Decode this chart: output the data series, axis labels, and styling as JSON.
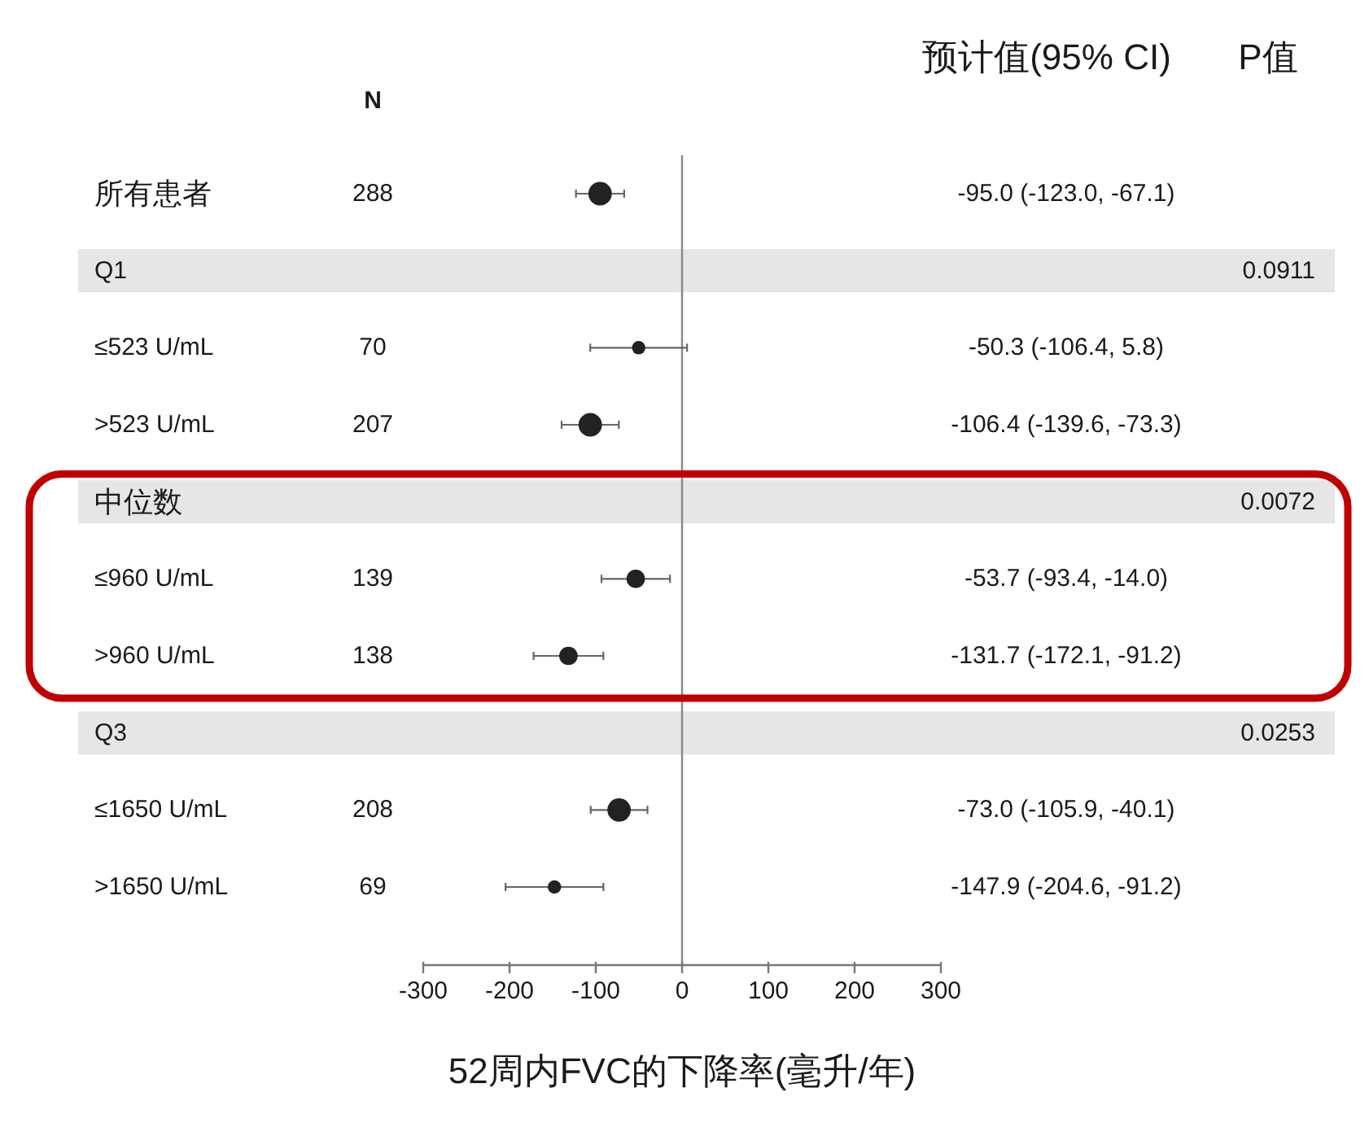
{
  "chart_data": {
    "type": "scatter",
    "orientation": "horizontal",
    "xlabel": "52周内FVC的下降率(毫升/年)",
    "categories": [
      "所有患者",
      "Q1",
      "≤523 U/mL",
      ">523 U/mL",
      "中位数",
      "≤960 U/mL",
      ">960 U/mL",
      "Q3",
      "≤1650 U/mL",
      ">1650 U/mL"
    ],
    "values": [
      -95.0,
      null,
      -50.3,
      -106.4,
      null,
      -53.7,
      -131.7,
      null,
      -73.0,
      -147.9
    ],
    "errors": [
      [
        -123.0,
        -67.1
      ],
      null,
      [
        -106.4,
        5.8
      ],
      [
        -139.6,
        -73.3
      ],
      null,
      [
        -93.4,
        -14.0
      ],
      [
        -172.1,
        -91.2
      ],
      null,
      [
        -105.9,
        -40.1
      ],
      [
        -204.6,
        -91.2
      ]
    ],
    "sizes": [
      1,
      null,
      0.33,
      1,
      null,
      0.62,
      0.62,
      null,
      1,
      0.33
    ],
    "color": "#222222",
    "marker": "circle",
    "xlim": [
      -300,
      300
    ],
    "xticks": [
      -300,
      -200,
      -100,
      0,
      100,
      200,
      300
    ],
    "ref_lines": [
      {
        "axis": "x",
        "value": 0,
        "color": "#888888"
      }
    ],
    "annotations": [
      "N",
      "预计值(95% CI)",
      "P值",
      "288",
      "-95.0 (-123.0, -67.1)",
      "0.0911",
      "70",
      "-50.3 (-106.4, 5.8)",
      "207",
      "-106.4 (-139.6, -73.3)",
      "0.0072",
      "139",
      "-53.7 (-93.4, -14.0)",
      "138",
      "-131.7 (-172.1, -91.2)",
      "0.0253",
      "208",
      "-73.0 (-105.9, -40.1)",
      "69",
      "-147.9 (-204.6, -91.2)"
    ]
  }
}
